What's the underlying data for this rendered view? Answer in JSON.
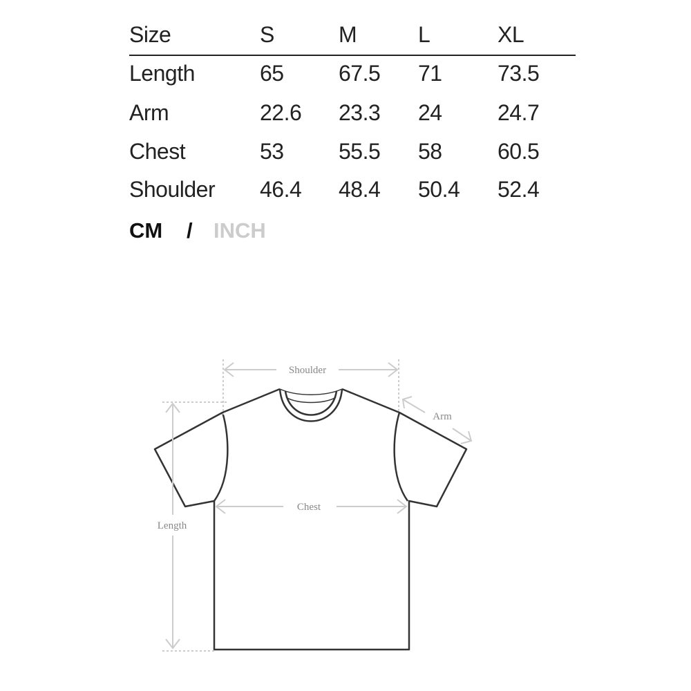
{
  "size_table": {
    "header": [
      "Size",
      "S",
      "M",
      "L",
      "XL"
    ],
    "rows": [
      {
        "label": "Length",
        "values": [
          "65",
          "67.5",
          "71",
          "73.5"
        ]
      },
      {
        "label": "Arm",
        "values": [
          "22.6",
          "23.3",
          "24",
          "24.7"
        ]
      },
      {
        "label": "Chest",
        "values": [
          "53",
          "55.5",
          "58",
          "60.5"
        ]
      },
      {
        "label": "Shoulder",
        "values": [
          "46.4",
          "48.4",
          "50.4",
          "52.4"
        ]
      }
    ]
  },
  "units": {
    "active": "CM",
    "separator": "/",
    "inactive": "INCH",
    "active_color": "#111111",
    "inactive_color": "#cccccc"
  },
  "diagram": {
    "labels": {
      "shoulder": "Shoulder",
      "arm": "Arm",
      "chest": "Chest",
      "length": "Length"
    }
  }
}
